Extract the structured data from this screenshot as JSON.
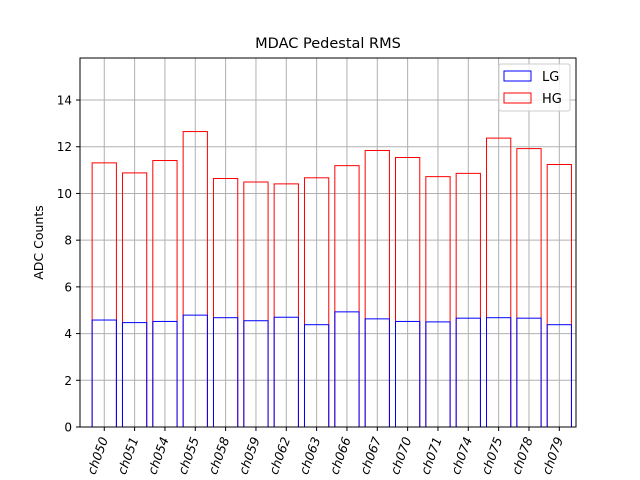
{
  "chart_data": {
    "type": "bar",
    "title": "MDAC Pedestal RMS",
    "xlabel": "",
    "ylabel": "ADC Counts",
    "ylim": [
      0,
      15.8
    ],
    "yticks": [
      0,
      2,
      4,
      6,
      8,
      10,
      12,
      14
    ],
    "grid": true,
    "legend_position": "top-right",
    "categories": [
      "ch050",
      "ch051",
      "ch054",
      "ch055",
      "ch058",
      "ch059",
      "ch062",
      "ch063",
      "ch066",
      "ch067",
      "ch070",
      "ch071",
      "ch074",
      "ch075",
      "ch078",
      "ch079"
    ],
    "series": [
      {
        "name": "LG",
        "color": "#0000ff",
        "values": [
          4.58,
          4.47,
          4.52,
          4.79,
          4.68,
          4.55,
          4.7,
          4.38,
          4.93,
          4.63,
          4.52,
          4.5,
          4.66,
          4.68,
          4.66,
          4.38
        ]
      },
      {
        "name": "HG",
        "color": "#ff0000",
        "values": [
          11.31,
          10.88,
          11.41,
          12.65,
          10.64,
          10.49,
          10.41,
          10.67,
          11.19,
          11.84,
          11.54,
          10.72,
          10.86,
          12.37,
          11.92,
          11.24
        ]
      }
    ]
  }
}
